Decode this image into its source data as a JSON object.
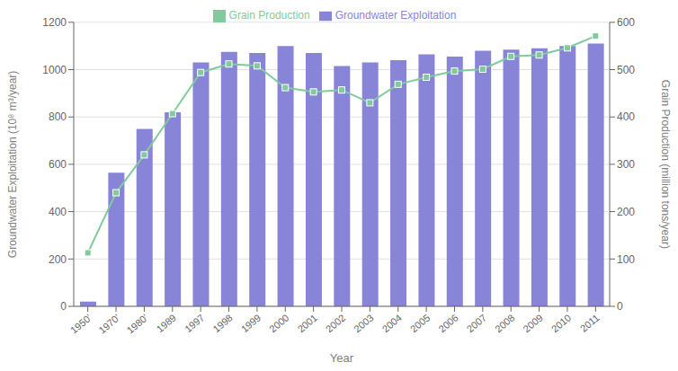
{
  "chart_data": {
    "type": "bar",
    "xlabel": "Year",
    "ylabel": "Groundwater Exploitation (10⁸ m³/year)",
    "y2label": "Grain Production (million tons/year)",
    "categories": [
      "1950'",
      "1970'",
      "1980'",
      "1989",
      "1997",
      "1998",
      "1999",
      "2000",
      "2001",
      "2002",
      "2003",
      "2004",
      "2005",
      "2006",
      "2007",
      "2008",
      "2009",
      "2010",
      "2011"
    ],
    "series": [
      {
        "name": "Groundwater Exploitation",
        "type": "bar",
        "color": "#8884d8",
        "values": [
          20,
          565,
          750,
          820,
          1030,
          1075,
          1070,
          1100,
          1070,
          1015,
          1030,
          1040,
          1065,
          1055,
          1080,
          1085,
          1090,
          1100,
          1110
        ]
      },
      {
        "name": "Grain Production",
        "type": "line",
        "axis": "y2",
        "color": "#82ca9d",
        "marker": "square",
        "values": [
          113,
          240,
          320,
          407,
          494,
          512,
          508,
          462,
          453,
          457,
          430,
          469,
          484,
          497,
          501,
          528,
          531,
          546,
          571
        ]
      }
    ],
    "ylim": [
      0,
      1200
    ],
    "yticks": [
      0,
      200,
      400,
      600,
      800,
      1000,
      1200
    ],
    "y2lim": [
      0,
      600
    ],
    "y2ticks": [
      0,
      100,
      200,
      300,
      400,
      500,
      600
    ],
    "grid": true,
    "legend": "top"
  }
}
